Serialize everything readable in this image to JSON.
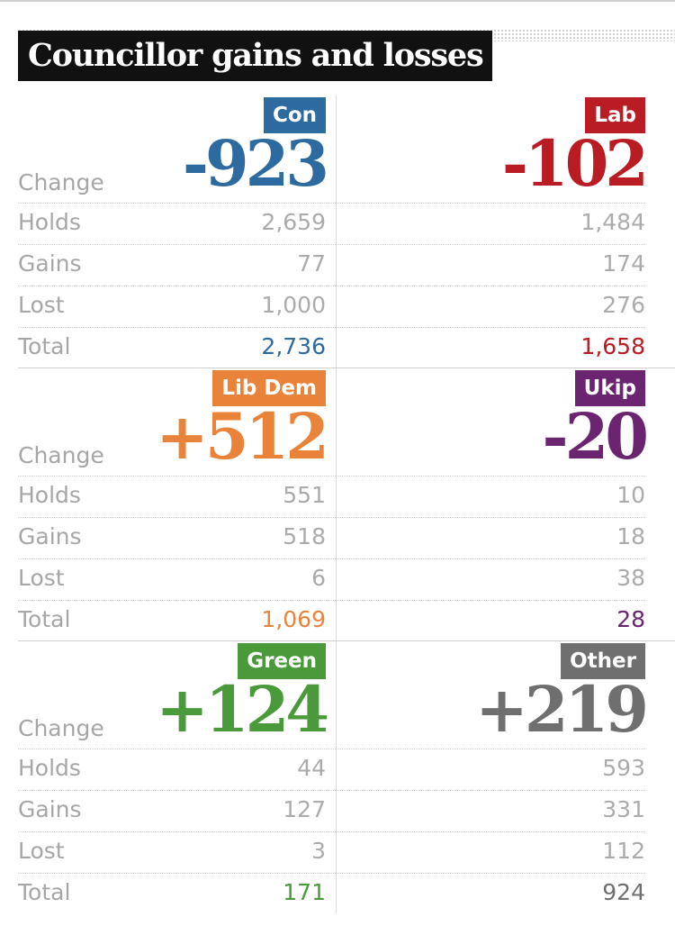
{
  "title": "Councillor gains and losses",
  "row_labels": [
    "Change",
    "Holds",
    "Gains",
    "Lost",
    "Total"
  ],
  "colors": {
    "con": "#2d6aa0",
    "lab": "#b91c22",
    "libdem": "#e9833a",
    "ukip": "#6a2470",
    "green": "#4a9a3c",
    "other": "#6f6f6f"
  },
  "chart_data": {
    "type": "table",
    "title": "Councillor gains and losses",
    "columns": [
      "Change",
      "Holds",
      "Gains",
      "Lost",
      "Total"
    ],
    "parties": [
      {
        "key": "con",
        "name": "Con",
        "change": "-923",
        "holds": "2,659",
        "gains": "77",
        "lost": "1,000",
        "total": "2,736"
      },
      {
        "key": "lab",
        "name": "Lab",
        "change": "-102",
        "holds": "1,484",
        "gains": "174",
        "lost": "276",
        "total": "1,658"
      },
      {
        "key": "libdem",
        "name": "Lib Dem",
        "change": "+512",
        "holds": "551",
        "gains": "518",
        "lost": "6",
        "total": "1,069"
      },
      {
        "key": "ukip",
        "name": "Ukip",
        "change": "-20",
        "holds": "10",
        "gains": "18",
        "lost": "38",
        "total": "28"
      },
      {
        "key": "green",
        "name": "Green",
        "change": "+124",
        "holds": "44",
        "gains": "127",
        "lost": "3",
        "total": "171"
      },
      {
        "key": "other",
        "name": "Other",
        "change": "+219",
        "holds": "593",
        "gains": "331",
        "lost": "112",
        "total": "924"
      }
    ]
  }
}
